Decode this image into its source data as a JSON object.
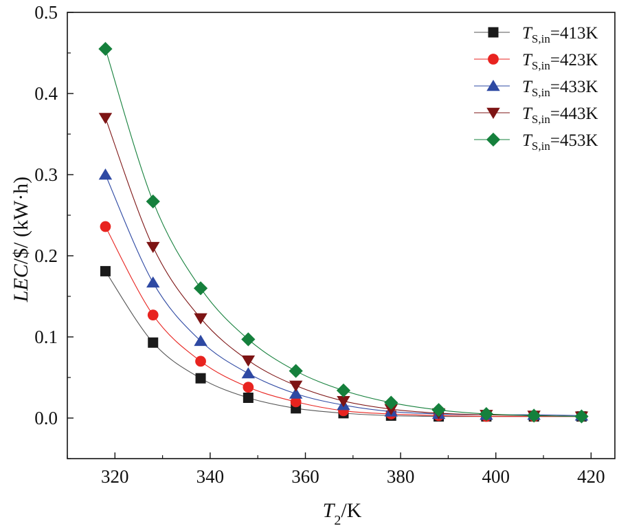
{
  "chart_data": {
    "type": "line",
    "title": "",
    "xlabel": {
      "main": "T",
      "sub": "2",
      "rest": "/K"
    },
    "ylabel": {
      "main": "LEC",
      "rest": "/$/ (kW·h)"
    },
    "xlim": [
      310,
      425
    ],
    "ylim": [
      -0.05,
      0.5
    ],
    "xticks": [
      320,
      340,
      360,
      380,
      400,
      420
    ],
    "yticks": [
      0.0,
      0.1,
      0.2,
      0.3,
      0.4,
      0.5
    ],
    "ytick_labels": [
      "0.0",
      "0.1",
      "0.2",
      "0.3",
      "0.4",
      "0.5"
    ],
    "grid": false,
    "legend_position": "top-right",
    "x": [
      318,
      328,
      338,
      348,
      358,
      368,
      378,
      388,
      398,
      408,
      418
    ],
    "series": [
      {
        "name": "TS,in=413K",
        "label_main": "T",
        "label_sub": "S,in",
        "label_rest": "=413K",
        "marker": "square",
        "color": "#1a1a1a",
        "line_color": "#555555",
        "values": [
          0.181,
          0.093,
          0.049,
          0.025,
          0.012,
          0.006,
          0.003,
          0.002,
          0.002,
          0.002,
          0.002
        ]
      },
      {
        "name": "TS,in=423K",
        "label_main": "T",
        "label_sub": "S,in",
        "label_rest": "=423K",
        "marker": "circle",
        "color": "#e8231f",
        "line_color": "#e8231f",
        "values": [
          0.236,
          0.127,
          0.07,
          0.038,
          0.02,
          0.009,
          0.005,
          0.003,
          0.002,
          0.002,
          0.002
        ]
      },
      {
        "name": "TS,in=433K",
        "label_main": "T",
        "label_sub": "S,in",
        "label_rest": "=433K",
        "marker": "triangle-up",
        "color": "#2e49a3",
        "line_color": "#2e49a3",
        "values": [
          0.3,
          0.167,
          0.095,
          0.055,
          0.03,
          0.016,
          0.008,
          0.005,
          0.004,
          0.004,
          0.003
        ]
      },
      {
        "name": "TS,in=443K",
        "label_main": "T",
        "label_sub": "S,in",
        "label_rest": "=443K",
        "marker": "triangle-down",
        "color": "#7d1414",
        "line_color": "#7d1414",
        "values": [
          0.37,
          0.211,
          0.123,
          0.071,
          0.04,
          0.021,
          0.011,
          0.006,
          0.004,
          0.003,
          0.002
        ]
      },
      {
        "name": "TS,in=453K",
        "label_main": "T",
        "label_sub": "S,in",
        "label_rest": "=453K",
        "marker": "diamond",
        "color": "#15803c",
        "line_color": "#15803c",
        "values": [
          0.455,
          0.267,
          0.16,
          0.097,
          0.058,
          0.034,
          0.019,
          0.01,
          0.005,
          0.003,
          0.002
        ]
      }
    ]
  }
}
